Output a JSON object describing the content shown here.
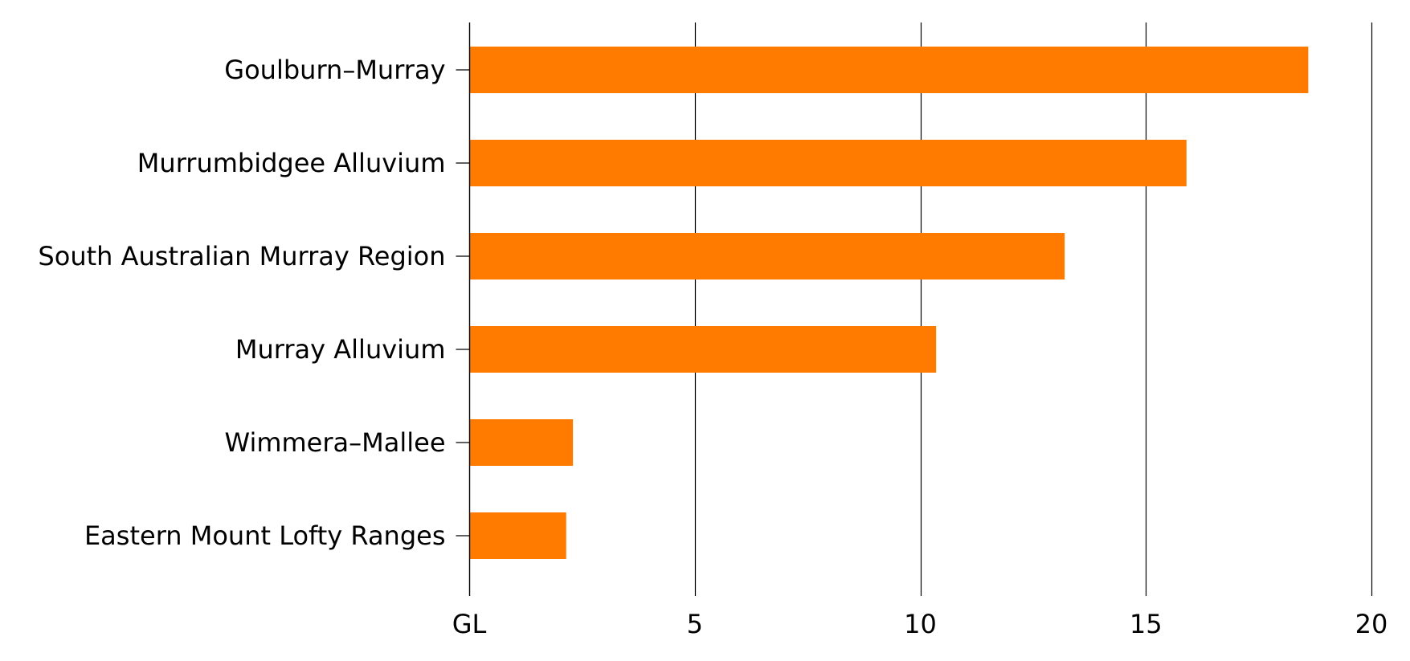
{
  "chart_data": {
    "type": "bar",
    "orientation": "horizontal",
    "categories": [
      "Goulburn–Murray",
      "Murrumbidgee Alluvium",
      "South Australian Murray Region",
      "Murray Alluvium",
      "Wimmera–Mallee",
      "Eastern Mount Lofty Ranges"
    ],
    "values": [
      18.6,
      15.9,
      13.2,
      10.35,
      2.3,
      2.15
    ],
    "xlim": [
      0,
      20
    ],
    "x_ticks": [
      0,
      5,
      10,
      15,
      20
    ],
    "x_tick_labels": [
      "GL",
      "5",
      "10",
      "15",
      "20"
    ],
    "grid": "vertical",
    "bar_color": "#FF7B00"
  }
}
